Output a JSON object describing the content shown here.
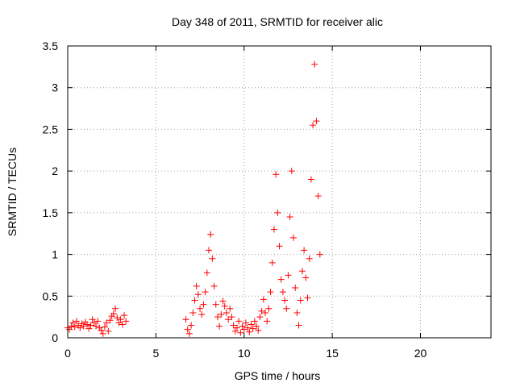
{
  "chart_data": {
    "type": "scatter",
    "title": "Day 348 of 2011, SRMTID for receiver alic",
    "xlabel": "GPS time / hours",
    "ylabel": "SRMTID / TECUs",
    "xlim": [
      0,
      24
    ],
    "ylim": [
      0,
      3.5
    ],
    "xticks": [
      0,
      5,
      10,
      15,
      20
    ],
    "yticks": [
      0,
      0.5,
      1,
      1.5,
      2,
      2.5,
      3,
      3.5
    ],
    "xtick_labels": [
      "0",
      "5",
      "10",
      "15",
      "20"
    ],
    "ytick_labels": [
      "0",
      "0.5",
      "1",
      "1.5",
      "2",
      "2.5",
      "3",
      "3.5"
    ],
    "grid": true,
    "marker": "+",
    "color": "#ff0000",
    "series": [
      {
        "name": "SRMTID",
        "x": [
          0.0,
          0.1,
          0.2,
          0.3,
          0.4,
          0.5,
          0.6,
          0.7,
          0.8,
          0.9,
          1.0,
          1.1,
          1.2,
          1.3,
          1.4,
          1.5,
          1.6,
          1.7,
          1.8,
          1.9,
          2.0,
          2.1,
          2.2,
          2.3,
          2.4,
          2.5,
          2.6,
          2.7,
          2.8,
          2.9,
          3.0,
          3.1,
          3.2,
          3.3,
          6.7,
          6.8,
          6.9,
          7.0,
          7.1,
          7.2,
          7.3,
          7.4,
          7.5,
          7.6,
          7.7,
          7.8,
          7.9,
          8.0,
          8.1,
          8.2,
          8.3,
          8.4,
          8.5,
          8.6,
          8.7,
          8.8,
          8.9,
          9.0,
          9.1,
          9.2,
          9.3,
          9.4,
          9.5,
          9.6,
          9.7,
          9.8,
          9.9,
          10.0,
          10.1,
          10.2,
          10.3,
          10.4,
          10.5,
          10.6,
          10.7,
          10.8,
          10.9,
          11.0,
          11.1,
          11.2,
          11.3,
          11.4,
          11.5,
          11.6,
          11.7,
          11.8,
          11.9,
          12.0,
          12.1,
          12.2,
          12.3,
          12.4,
          12.5,
          12.6,
          12.7,
          12.8,
          12.9,
          13.0,
          13.1,
          13.2,
          13.3,
          13.4,
          13.5,
          13.6,
          13.7,
          13.8,
          13.9,
          14.0,
          14.1,
          14.2,
          14.3
        ],
        "y": [
          0.12,
          0.1,
          0.14,
          0.18,
          0.13,
          0.2,
          0.15,
          0.12,
          0.17,
          0.14,
          0.19,
          0.16,
          0.11,
          0.15,
          0.22,
          0.18,
          0.14,
          0.2,
          0.12,
          0.09,
          0.05,
          0.13,
          0.18,
          0.08,
          0.21,
          0.26,
          0.29,
          0.35,
          0.24,
          0.18,
          0.22,
          0.16,
          0.27,
          0.2,
          0.22,
          0.1,
          0.05,
          0.15,
          0.3,
          0.45,
          0.62,
          0.52,
          0.35,
          0.28,
          0.4,
          0.55,
          0.78,
          1.05,
          1.24,
          0.95,
          0.62,
          0.4,
          0.25,
          0.14,
          0.28,
          0.44,
          0.38,
          0.3,
          0.22,
          0.35,
          0.25,
          0.15,
          0.08,
          0.12,
          0.2,
          0.06,
          0.14,
          0.1,
          0.18,
          0.12,
          0.07,
          0.16,
          0.11,
          0.2,
          0.14,
          0.09,
          0.25,
          0.32,
          0.46,
          0.3,
          0.2,
          0.35,
          0.55,
          0.9,
          1.3,
          1.96,
          1.5,
          1.1,
          0.7,
          0.55,
          0.45,
          0.35,
          0.75,
          1.45,
          2.0,
          1.2,
          0.6,
          0.3,
          0.15,
          0.45,
          0.8,
          1.05,
          0.72,
          0.48,
          0.95,
          1.9,
          2.55,
          3.28,
          2.6,
          1.7,
          1.0
        ]
      }
    ]
  }
}
